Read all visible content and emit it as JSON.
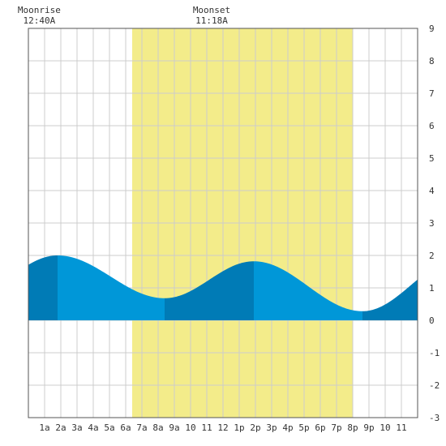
{
  "chart_data": {
    "type": "area",
    "annotations": [
      {
        "label": "Moonrise",
        "time": "12:40A",
        "hour": 0.67
      },
      {
        "label": "Moonset",
        "time": "11:18A",
        "hour": 11.3
      }
    ],
    "daylight": {
      "start_hour": 6.4,
      "end_hour": 20.0
    },
    "x_ticks": [
      "1a",
      "2a",
      "3a",
      "4a",
      "5a",
      "6a",
      "7a",
      "8a",
      "9a",
      "10",
      "11",
      "12",
      "1p",
      "2p",
      "3p",
      "4p",
      "5p",
      "6p",
      "7p",
      "8p",
      "9p",
      "10",
      "11"
    ],
    "y_ticks": [
      "9",
      "8",
      "7",
      "6",
      "5",
      "4",
      "3",
      "2",
      "1",
      "0",
      "-1",
      "-2",
      "-3"
    ],
    "xlim": [
      0,
      24
    ],
    "ylim": [
      -3,
      9
    ],
    "grid": true,
    "tide_extremes": [
      {
        "hour": -4.2,
        "value": 0.6,
        "kind": "low"
      },
      {
        "hour": 1.8,
        "value": 2.0,
        "kind": "high"
      },
      {
        "hour": 8.4,
        "value": 0.68,
        "kind": "low"
      },
      {
        "hour": 13.9,
        "value": 1.82,
        "kind": "high"
      },
      {
        "hour": 20.6,
        "value": 0.28,
        "kind": "low"
      },
      {
        "hour": 26.6,
        "value": 1.9,
        "kind": "high"
      }
    ],
    "colors": {
      "daylight": "#f3ec8a",
      "tide_light": "#0097d8",
      "tide_dark": "#007bb6",
      "grid": "#cccccc",
      "border": "#555555"
    }
  }
}
